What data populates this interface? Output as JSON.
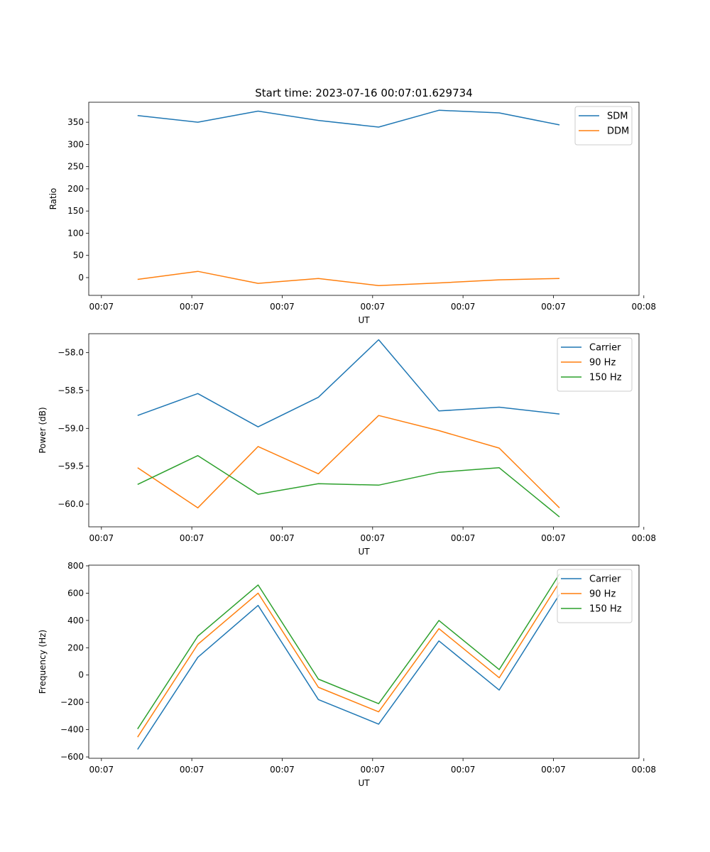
{
  "figure": {
    "title": "Start time: 2023-07-16 00:07:01.629734"
  },
  "chart_data": [
    {
      "type": "line",
      "title": "Start time: 2023-07-16 00:07:01.629734",
      "xlabel": "UT",
      "ylabel": "Ratio",
      "x": [
        1,
        2,
        3,
        4,
        5,
        6,
        7,
        8
      ],
      "xlim": [
        0.19,
        9.32
      ],
      "ylim": [
        -40,
        395
      ],
      "xticks": [
        0.4,
        1.9,
        3.4,
        4.9,
        6.4,
        7.9,
        9.4
      ],
      "xticklabels": [
        "00:07",
        "00:07",
        "00:07",
        "00:07",
        "00:07",
        "00:07",
        "00:08"
      ],
      "yticks": [
        0,
        50,
        100,
        150,
        200,
        250,
        300,
        350
      ],
      "yticklabels": [
        "0",
        "50",
        "100",
        "150",
        "200",
        "250",
        "300",
        "350"
      ],
      "legend_position": "top-right",
      "series": [
        {
          "name": "SDM",
          "color": "#1f77b4",
          "values": [
            365,
            350,
            375,
            354,
            339,
            377,
            371,
            344
          ]
        },
        {
          "name": "DDM",
          "color": "#ff7f0e",
          "values": [
            -4,
            14,
            -13,
            -2,
            -18,
            -12,
            -5,
            -2
          ]
        }
      ]
    },
    {
      "type": "line",
      "title": "",
      "xlabel": "UT",
      "ylabel": "Power (dB)",
      "x": [
        1,
        2,
        3,
        4,
        5,
        6,
        7,
        8
      ],
      "xlim": [
        0.19,
        9.32
      ],
      "ylim": [
        -60.3,
        -57.75
      ],
      "xticks": [
        0.4,
        1.9,
        3.4,
        4.9,
        6.4,
        7.9,
        9.4
      ],
      "xticklabels": [
        "00:07",
        "00:07",
        "00:07",
        "00:07",
        "00:07",
        "00:07",
        "00:08"
      ],
      "yticks": [
        -60.0,
        -59.5,
        -59.0,
        -58.5,
        -58.0
      ],
      "yticklabels": [
        "−60.0",
        "−59.5",
        "−59.0",
        "−58.5",
        "−58.0"
      ],
      "legend_position": "top-right",
      "series": [
        {
          "name": "Carrier",
          "color": "#1f77b4",
          "values": [
            -58.83,
            -58.54,
            -58.98,
            -58.59,
            -57.83,
            -58.77,
            -58.72,
            -58.81
          ]
        },
        {
          "name": "90 Hz",
          "color": "#ff7f0e",
          "values": [
            -59.52,
            -60.05,
            -59.24,
            -59.6,
            -58.83,
            -59.03,
            -59.26,
            -60.05
          ]
        },
        {
          "name": "150 Hz",
          "color": "#2ca02c",
          "values": [
            -59.74,
            -59.36,
            -59.87,
            -59.73,
            -59.75,
            -59.58,
            -59.52,
            -60.17
          ]
        }
      ]
    },
    {
      "type": "line",
      "title": "",
      "xlabel": "UT",
      "ylabel": "Frequency (Hz)",
      "x": [
        1,
        2,
        3,
        4,
        5,
        6,
        7,
        8
      ],
      "xlim": [
        0.19,
        9.32
      ],
      "ylim": [
        -610,
        805
      ],
      "xticks": [
        0.4,
        1.9,
        3.4,
        4.9,
        6.4,
        7.9,
        9.4
      ],
      "xticklabels": [
        "00:07",
        "00:07",
        "00:07",
        "00:07",
        "00:07",
        "00:07",
        "00:08"
      ],
      "yticks": [
        -600,
        -400,
        -200,
        0,
        200,
        400,
        600,
        800
      ],
      "yticklabels": [
        "−600",
        "−400",
        "−200",
        "0",
        "200",
        "400",
        "600",
        "800"
      ],
      "legend_position": "top-right",
      "series": [
        {
          "name": "Carrier",
          "color": "#1f77b4",
          "values": [
            -545,
            130,
            510,
            -180,
            -360,
            250,
            -110,
            590
          ]
        },
        {
          "name": "90 Hz",
          "color": "#ff7f0e",
          "values": [
            -455,
            225,
            600,
            -90,
            -270,
            340,
            -20,
            680
          ]
        },
        {
          "name": "150 Hz",
          "color": "#2ca02c",
          "values": [
            -395,
            285,
            660,
            -30,
            -210,
            400,
            40,
            740
          ]
        }
      ]
    }
  ]
}
